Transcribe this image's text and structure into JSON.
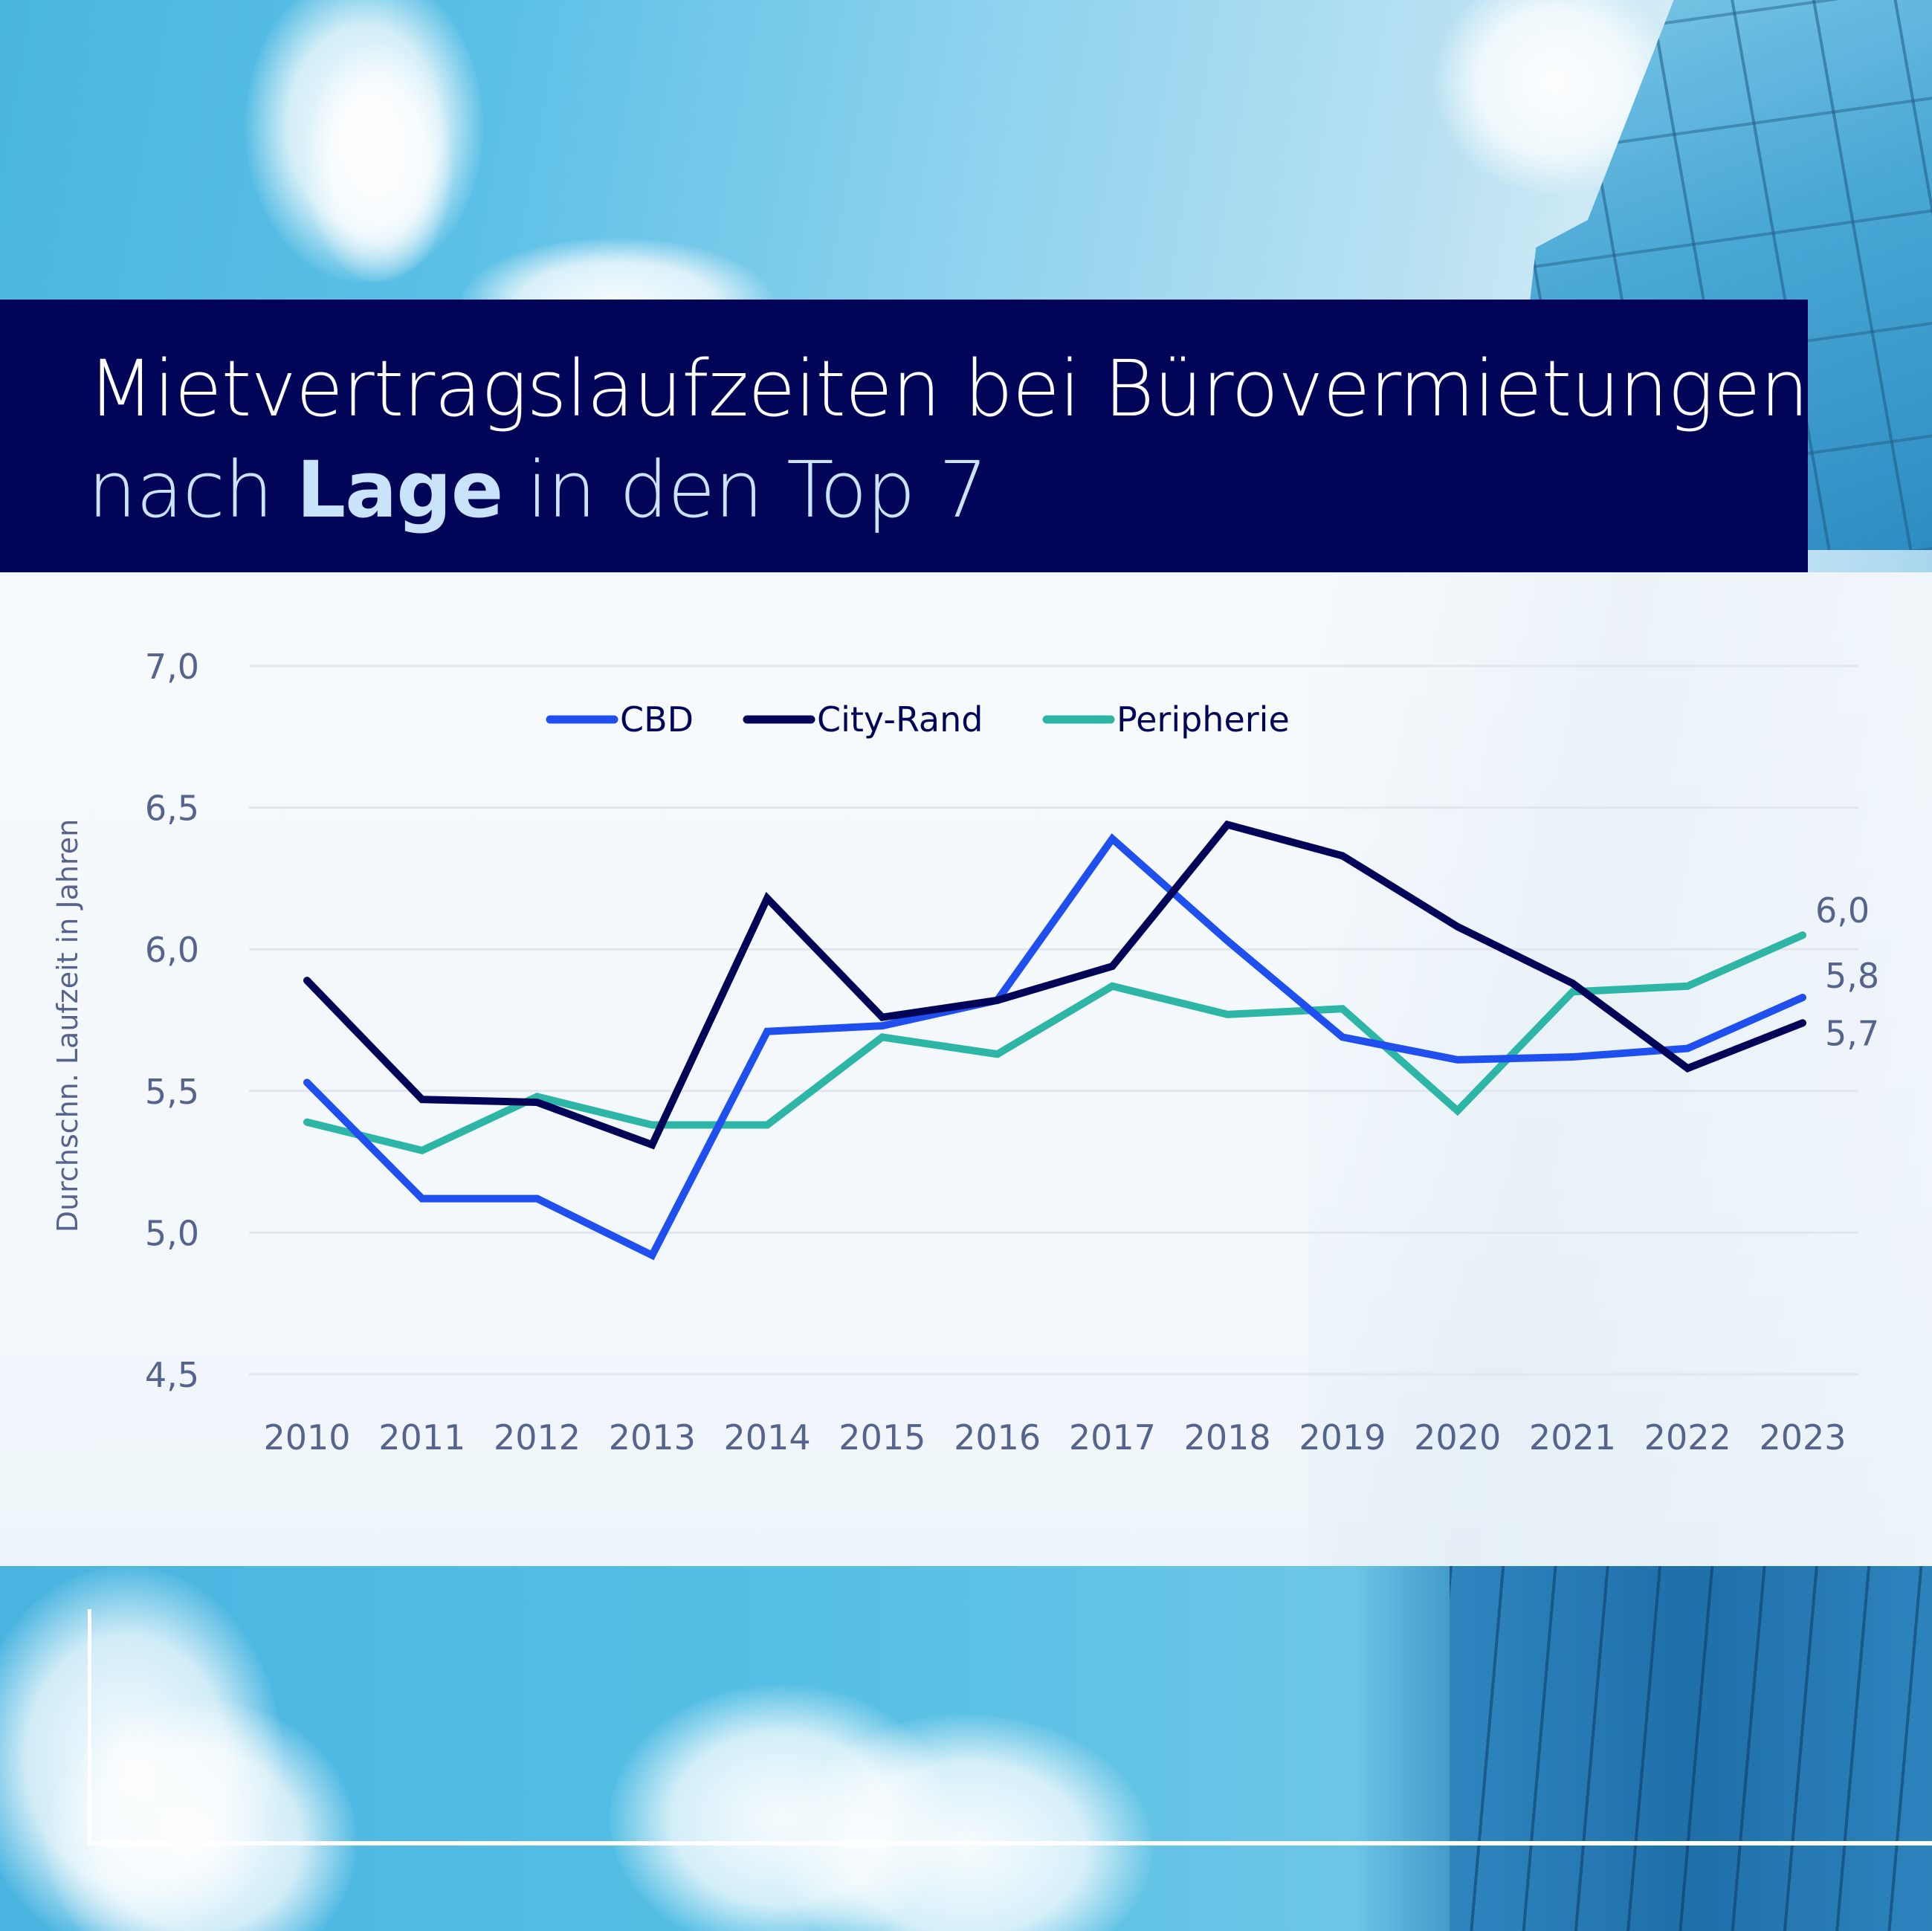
{
  "title": {
    "line1": "Mietvertragslaufzeiten bei Bürovermietungen",
    "line2_prefix": "nach",
    "line2_bold": "Lage",
    "line2_suffix": "in den Top 7"
  },
  "colors": {
    "navy": "#020557",
    "cbd": "#1f4fee",
    "city_rand": "#020557",
    "peripherie": "#2db5a6",
    "axis_text": "#56648d",
    "title_accent": "#c9e3fb"
  },
  "chart_data": {
    "type": "line",
    "title": "Mietvertragslaufzeiten bei Bürovermietungen nach Lage in den Top 7",
    "xlabel": "",
    "ylabel": "Durchschn. Laufzeit in Jahren",
    "ylim": [
      4.5,
      7.0
    ],
    "yticks": [
      "4,5",
      "5,0",
      "5,5",
      "6,0",
      "6,5",
      "7,0"
    ],
    "ytick_values": [
      4.5,
      5.0,
      5.5,
      6.0,
      6.5,
      7.0
    ],
    "grid": true,
    "legend_position": "top-center",
    "categories": [
      "2010",
      "2011",
      "2012",
      "2013",
      "2014",
      "2015",
      "2016",
      "2017",
      "2018",
      "2019",
      "2020",
      "2021",
      "2022",
      "2023"
    ],
    "series": [
      {
        "name": "CBD",
        "color": "#1f4fee",
        "values": [
          5.53,
          5.12,
          5.12,
          4.92,
          5.71,
          5.73,
          5.82,
          6.39,
          6.03,
          5.69,
          5.61,
          5.62,
          5.65,
          5.83
        ],
        "end_label": "5,8"
      },
      {
        "name": "City-Rand",
        "color": "#020557",
        "values": [
          5.89,
          5.47,
          5.46,
          5.31,
          6.18,
          5.76,
          5.82,
          5.94,
          6.44,
          6.33,
          6.08,
          5.88,
          5.58,
          5.74
        ],
        "end_label": "5,7"
      },
      {
        "name": "Peripherie",
        "color": "#2db5a6",
        "values": [
          5.39,
          5.29,
          5.48,
          5.38,
          5.38,
          5.69,
          5.63,
          5.87,
          5.77,
          5.79,
          5.43,
          5.85,
          5.87,
          6.05
        ],
        "end_label": "6,0"
      }
    ]
  }
}
